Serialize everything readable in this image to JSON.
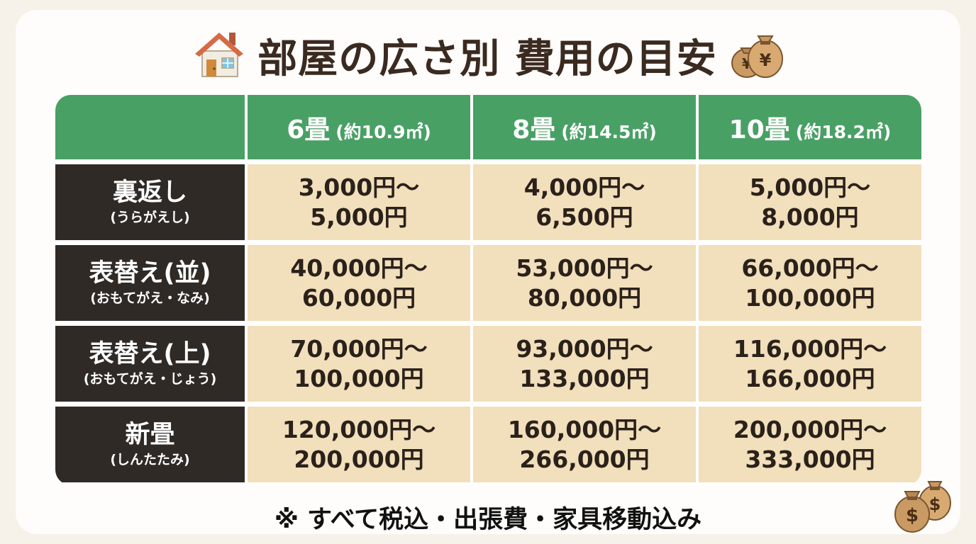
{
  "title": {
    "text": "部屋の広さ別 費用の目安",
    "left_icon": "house-icon",
    "right_icon": "yen-money-bags-icon"
  },
  "table": {
    "columns": [
      {
        "size": "6畳",
        "area": "(約10.9㎡)"
      },
      {
        "size": "8畳",
        "area": "(約14.5㎡)"
      },
      {
        "size": "10畳",
        "area": "(約18.2㎡)"
      }
    ],
    "rows": [
      {
        "name": "裏返し",
        "reading": "(うらがえし)",
        "prices": [
          [
            "3,000円〜",
            "5,000円"
          ],
          [
            "4,000円〜",
            "6,500円"
          ],
          [
            "5,000円〜",
            "8,000円"
          ]
        ]
      },
      {
        "name": "表替え(並)",
        "reading": "(おもてがえ・なみ)",
        "prices": [
          [
            "40,000円〜",
            "60,000円"
          ],
          [
            "53,000円〜",
            "80,000円"
          ],
          [
            "66,000円〜",
            "100,000円"
          ]
        ]
      },
      {
        "name": "表替え(上)",
        "reading": "(おもてがえ・じょう)",
        "prices": [
          [
            "70,000円〜",
            "100,000円"
          ],
          [
            "93,000円〜",
            "133,000円"
          ],
          [
            "116,000円〜",
            "166,000円"
          ]
        ]
      },
      {
        "name": "新畳",
        "reading": "(しんたたみ)",
        "prices": [
          [
            "120,000円〜",
            "200,000円"
          ],
          [
            "160,000円〜",
            "266,000円"
          ],
          [
            "200,000円〜",
            "333,000円"
          ]
        ]
      }
    ]
  },
  "note": "※ すべて税込・出張費・家具移動込み",
  "colors": {
    "header_green": "#49a065",
    "row_head_dark": "#2f2a26",
    "price_cell": "#f2dfbb",
    "title_brown": "#3b2a20"
  },
  "decor": {
    "bottom_icon": "dollar-money-bags-icon"
  }
}
